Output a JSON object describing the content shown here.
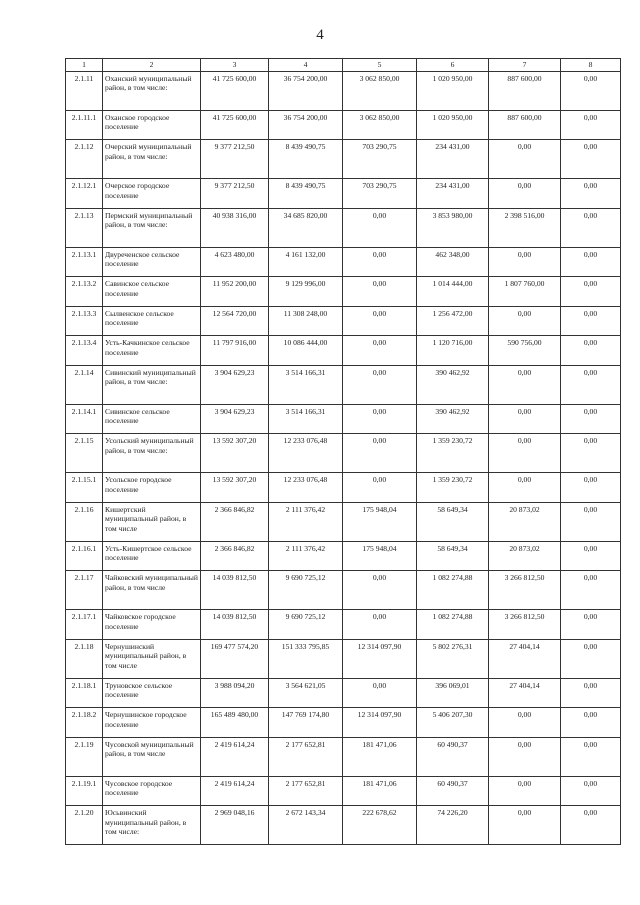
{
  "page_number": "4",
  "table": {
    "headers": [
      "1",
      "2",
      "3",
      "4",
      "5",
      "6",
      "7",
      "8"
    ],
    "rows": [
      {
        "code": "2.1.11",
        "name": "Оханский муниципальный район, в том числе:",
        "v": [
          "41 725 600,00",
          "36 754 200,00",
          "3 062 850,00",
          "1 020 950,00",
          "887 600,00",
          "0,00"
        ],
        "lines": 3
      },
      {
        "code": "2.1.11.1",
        "name": "Оханское городское поселение",
        "v": [
          "41 725 600,00",
          "36 754 200,00",
          "3 062 850,00",
          "1 020 950,00",
          "887 600,00",
          "0,00"
        ],
        "lines": 2
      },
      {
        "code": "2.1.12",
        "name": "Очерский муниципальный район, в том числе:",
        "v": [
          "9 377 212,50",
          "8 439 490,75",
          "703 290,75",
          "234 431,00",
          "0,00",
          "0,00"
        ],
        "lines": 3
      },
      {
        "code": "2.1.12.1",
        "name": "Очерское городское поселение",
        "v": [
          "9 377 212,50",
          "8 439 490,75",
          "703 290,75",
          "234 431,00",
          "0,00",
          "0,00"
        ],
        "lines": 2
      },
      {
        "code": "2.1.13",
        "name": "Пермский муниципальный район, в том числе:",
        "v": [
          "40 938 316,00",
          "34 685 820,00",
          "0,00",
          "3 853 980,00",
          "2 398 516,00",
          "0,00"
        ],
        "lines": 3
      },
      {
        "code": "2.1.13.1",
        "name": "Двуреченское сельское поселение",
        "v": [
          "4 623 480,00",
          "4 161 132,00",
          "0,00",
          "462 348,00",
          "0,00",
          "0,00"
        ],
        "lines": 2
      },
      {
        "code": "2.1.13.2",
        "name": "Савинское сельское поселение",
        "v": [
          "11 952 200,00",
          "9 129 996,00",
          "0,00",
          "1 014 444,00",
          "1 807 760,00",
          "0,00"
        ],
        "lines": 2
      },
      {
        "code": "2.1.13.3",
        "name": "Сылвенское сельское поселение",
        "v": [
          "12 564 720,00",
          "11 308 248,00",
          "0,00",
          "1 256 472,00",
          "0,00",
          "0,00"
        ],
        "lines": 2
      },
      {
        "code": "2.1.13.4",
        "name": "Усть-Качкинское сельское поселение",
        "v": [
          "11 797 916,00",
          "10 086 444,00",
          "0,00",
          "1 120 716,00",
          "590 756,00",
          "0,00"
        ],
        "lines": 2
      },
      {
        "code": "2.1.14",
        "name": "Сивинский муниципальный район, в том числе:",
        "v": [
          "3 904 629,23",
          "3 514 166,31",
          "0,00",
          "390 462,92",
          "0,00",
          "0,00"
        ],
        "lines": 3
      },
      {
        "code": "2.1.14.1",
        "name": "Сивинское сельское поселение",
        "v": [
          "3 904 629,23",
          "3 514 166,31",
          "0,00",
          "390 462,92",
          "0,00",
          "0,00"
        ],
        "lines": 2
      },
      {
        "code": "2.1.15",
        "name": "Усольский муниципальный район, в том числе:",
        "v": [
          "13 592 307,20",
          "12 233 076,48",
          "0,00",
          "1 359 230,72",
          "0,00",
          "0,00"
        ],
        "lines": 3
      },
      {
        "code": "2.1.15.1",
        "name": "Усольское городское поселение",
        "v": [
          "13 592 307,20",
          "12 233 076,48",
          "0,00",
          "1 359 230,72",
          "0,00",
          "0,00"
        ],
        "lines": 2
      },
      {
        "code": "2.1.16",
        "name": "Кишертский муниципальный район, в том числе",
        "v": [
          "2 366 846,82",
          "2 111 376,42",
          "175 948,04",
          "58 649,34",
          "20 873,02",
          "0,00"
        ],
        "lines": 3
      },
      {
        "code": "2.1.16.1",
        "name": "Усть-Кишертское сельское поселение",
        "v": [
          "2 366 846,82",
          "2 111 376,42",
          "175 948,04",
          "58 649,34",
          "20 873,02",
          "0,00"
        ],
        "lines": 2
      },
      {
        "code": "2.1.17",
        "name": "Чайковский муниципальный район, в том числе",
        "v": [
          "14 039 812,50",
          "9 690 725,12",
          "0,00",
          "1 082 274,88",
          "3 266 812,50",
          "0,00"
        ],
        "lines": 3
      },
      {
        "code": "2.1.17.1",
        "name": "Чайковское городское поселение",
        "v": [
          "14 039 812,50",
          "9 690 725,12",
          "0,00",
          "1 082 274,88",
          "3 266 812,50",
          "0,00"
        ],
        "lines": 2
      },
      {
        "code": "2.1.18",
        "name": "Чернушинский муниципальный район, в том числе",
        "v": [
          "169 477 574,20",
          "151 333 795,85",
          "12 314 097,90",
          "5 802 276,31",
          "27 404,14",
          "0,00"
        ],
        "lines": 3
      },
      {
        "code": "2.1.18.1",
        "name": "Труновское сельское поселение",
        "v": [
          "3 988 094,20",
          "3 564 621,05",
          "0,00",
          "396 069,01",
          "27 404,14",
          "0,00"
        ],
        "lines": 2
      },
      {
        "code": "2.1.18.2",
        "name": "Чернушинское городское поселение",
        "v": [
          "165 489 480,00",
          "147 769 174,80",
          "12 314 097,90",
          "5 406 207,30",
          "0,00",
          "0,00"
        ],
        "lines": 2
      },
      {
        "code": "2.1.19",
        "name": "Чусовской муниципальный район, в том числе",
        "v": [
          "2 419 614,24",
          "2 177 652,81",
          "181 471,06",
          "60 490,37",
          "0,00",
          "0,00"
        ],
        "lines": 3
      },
      {
        "code": "2.1.19.1",
        "name": "Чусовское городское поселение",
        "v": [
          "2 419 614,24",
          "2 177 652,81",
          "181 471,06",
          "60 490,37",
          "0,00",
          "0,00"
        ],
        "lines": 2
      },
      {
        "code": "2.1.20",
        "name": "Юсьвинский муниципальный район, в том числе:",
        "v": [
          "2 969 048,16",
          "2 672 143,34",
          "222 678,62",
          "74 226,20",
          "0,00",
          "0,00"
        ],
        "lines": 3
      }
    ]
  }
}
